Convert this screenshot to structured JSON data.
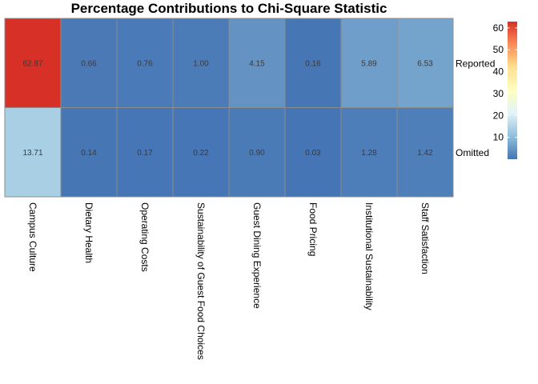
{
  "chart_data": {
    "type": "heatmap",
    "title": "Percentage Contributions to Chi-Square Statistic",
    "columns": [
      "Campus Culture",
      "Dietary Health",
      "Operating Costs",
      "Sustainability of Guest Food Choices",
      "Guest Dining Experience",
      "Food Pricing",
      "Institutional Sustainability",
      "Staff Satisfaction"
    ],
    "rows": [
      "Reported",
      "Omitted"
    ],
    "values": [
      [
        62.87,
        0.66,
        0.76,
        1.0,
        4.15,
        0.16,
        5.89,
        6.53
      ],
      [
        13.71,
        0.14,
        0.17,
        0.22,
        0.9,
        0.03,
        1.28,
        1.42
      ]
    ],
    "labels": [
      [
        "62.87",
        "0.66",
        "0.76",
        "1.00",
        "4.15",
        "0.16",
        "5.89",
        "6.53"
      ],
      [
        "13.71",
        "0.14",
        "0.17",
        "0.22",
        "0.90",
        "0.03",
        "1.28",
        "1.42"
      ]
    ],
    "color_scale": {
      "range": [
        0.03,
        62.87
      ],
      "palette": [
        "#4575b4",
        "#91bfdb",
        "#e0f3f8",
        "#ffffbf",
        "#fee090",
        "#fc8d59",
        "#d73027"
      ]
    },
    "legend": {
      "ticks": [
        10,
        20,
        30,
        40,
        50,
        60
      ],
      "tick_labels": [
        "10",
        "20",
        "30",
        "40",
        "50",
        "60"
      ]
    },
    "colors": {
      "cell_border": "#8c8c8c",
      "row_labels_position": "right",
      "col_labels_position": "bottom"
    }
  }
}
